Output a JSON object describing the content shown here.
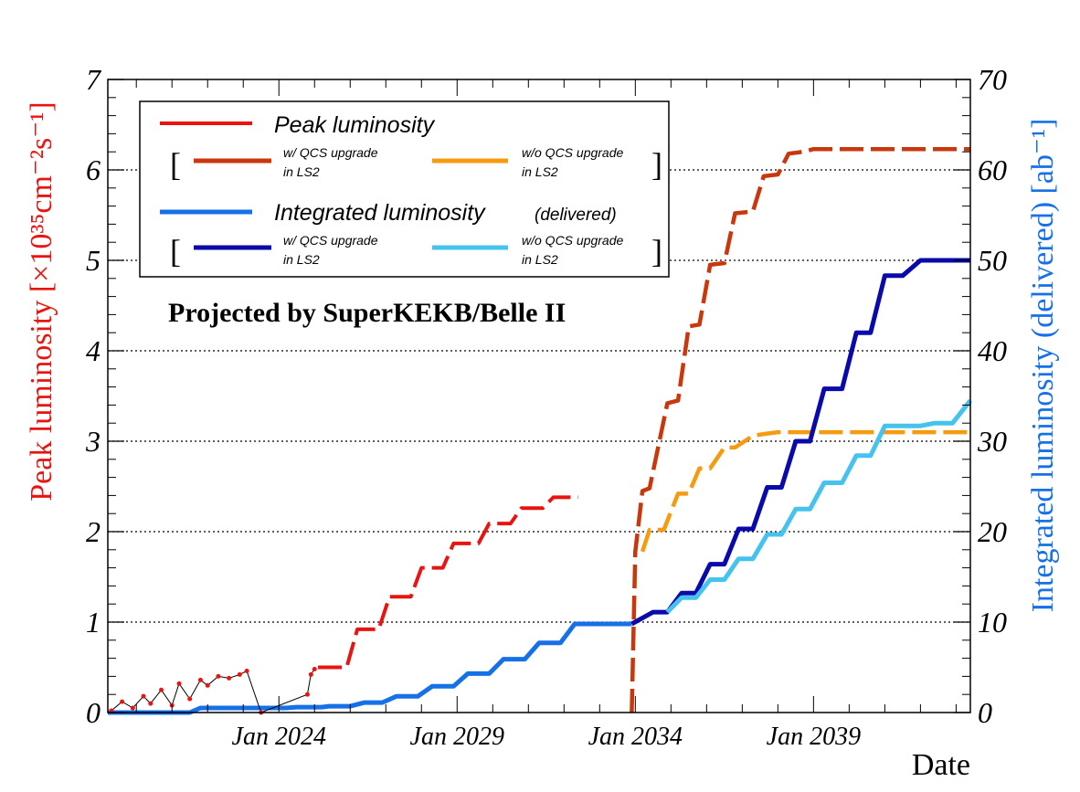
{
  "chart_data": {
    "type": "line",
    "title": "",
    "annotation": "Projected by SuperKEKB/Belle II",
    "xlabel": "Date",
    "ylabel_left": "Peak luminosity [×10³⁵cm⁻²s⁻¹]",
    "ylabel_right": "Integrated luminosity (delivered) [ab⁻¹]",
    "x_range": [
      2019.2,
      2043.4
    ],
    "ylim_left": [
      0,
      7
    ],
    "ylim_right": [
      0,
      70
    ],
    "x_ticks": [
      {
        "x": 2024.0,
        "label": "Jan 2024"
      },
      {
        "x": 2029.0,
        "label": "Jan 2029"
      },
      {
        "x": 2034.0,
        "label": "Jan 2034"
      },
      {
        "x": 2039.0,
        "label": "Jan 2039"
      }
    ],
    "y_ticks_left": [
      "0",
      "1",
      "2",
      "3",
      "4",
      "5",
      "6",
      "7"
    ],
    "y_ticks_right": [
      "0",
      "10",
      "20",
      "30",
      "40",
      "50",
      "60",
      "70"
    ],
    "gridlines_y": [
      1,
      2,
      3,
      4,
      5,
      6
    ],
    "grid": "horizontal dotted",
    "legend": {
      "placement": "top-left",
      "peak_label": "Peak luminosity",
      "integ_label": "Integrated luminosity",
      "integ_sub": "(delivered)",
      "with_upgrade": "w/ QCS upgrade",
      "without_upgrade": "w/o QCS upgrade",
      "in_ls2": "in LS2",
      "bracket_open": "[",
      "bracket_close": "]"
    },
    "colors": {
      "peak": "#e8140f",
      "peak_with_qcs": "#c8380c",
      "peak_without_qcs": "#f59b10",
      "integ": "#1670e8",
      "integ_with_qcs": "#0a0aaa",
      "integ_without_qcs": "#45c3ee",
      "axis_left_label": "#e8140f",
      "axis_right_label": "#1670e8"
    },
    "series": [
      {
        "name": "Peak luminosity",
        "axis": "left",
        "color": "#e8140f",
        "x": [
          2025.1,
          2025.9,
          2026.2,
          2026.8,
          2027.1,
          2027.7,
          2028.0,
          2028.6,
          2028.9,
          2029.6,
          2029.9,
          2030.5,
          2030.8,
          2031.4,
          2031.7,
          2032.4
        ],
        "y": [
          0.5,
          0.5,
          0.92,
          0.92,
          1.28,
          1.28,
          1.6,
          1.6,
          1.87,
          1.87,
          2.09,
          2.09,
          2.26,
          2.26,
          2.38,
          2.38
        ]
      },
      {
        "name": "Peak luminosity w/ QCS upgrade in LS2",
        "axis": "left",
        "color": "#c8380c",
        "x": [
          2033.9,
          2034.0,
          2034.2,
          2034.4,
          2034.9,
          2035.2,
          2035.5,
          2035.8,
          2036.1,
          2036.5,
          2036.8,
          2037.3,
          2037.6,
          2038.0,
          2038.3,
          2038.7,
          2039.0,
          2039.4,
          2040.0,
          2040.5,
          2041.0,
          2043.4
        ],
        "y": [
          0,
          1.78,
          2.45,
          2.48,
          3.42,
          3.45,
          4.27,
          4.29,
          4.95,
          4.97,
          5.52,
          5.54,
          5.93,
          5.95,
          6.18,
          6.2,
          6.23,
          6.23,
          6.23,
          6.23,
          6.23,
          6.23
        ]
      },
      {
        "name": "Peak luminosity w/o QCS upgrade in LS2",
        "axis": "left",
        "color": "#f59b10",
        "x": [
          2034.2,
          2034.4,
          2034.8,
          2035.2,
          2035.5,
          2035.8,
          2036.1,
          2036.5,
          2036.8,
          2037.3,
          2037.6,
          2038.0,
          2038.4,
          2039.0,
          2040.0,
          2043.4
        ],
        "y": [
          1.78,
          2.02,
          2.02,
          2.42,
          2.42,
          2.7,
          2.7,
          2.93,
          2.93,
          3.06,
          3.08,
          3.1,
          3.1,
          3.1,
          3.1,
          3.1
        ]
      },
      {
        "name": "Integrated luminosity (delivered)",
        "axis": "right",
        "color": "#1670e8",
        "x": [
          2019.2,
          2021.5,
          2021.8,
          2024.2,
          2024.5,
          2025.2,
          2025.4,
          2026.0,
          2026.4,
          2026.9,
          2027.3,
          2027.9,
          2028.3,
          2028.9,
          2029.3,
          2029.9,
          2030.3,
          2030.9,
          2031.3,
          2031.9,
          2032.3,
          2033.9
        ],
        "y": [
          0,
          0,
          0.5,
          0.5,
          0.6,
          0.6,
          0.7,
          0.7,
          1.1,
          1.1,
          1.8,
          1.8,
          2.9,
          2.9,
          4.3,
          4.3,
          5.9,
          5.9,
          7.7,
          7.7,
          9.8,
          9.8
        ]
      },
      {
        "name": "Integrated luminosity w/ QCS upgrade in LS2",
        "axis": "right",
        "color": "#0a0aaa",
        "x": [
          2033.9,
          2034.5,
          2034.9,
          2035.3,
          2035.7,
          2036.1,
          2036.5,
          2036.9,
          2037.3,
          2037.7,
          2038.1,
          2038.5,
          2038.9,
          2039.3,
          2039.8,
          2040.2,
          2040.6,
          2041.0,
          2041.5,
          2042.0,
          2042.4,
          2042.9,
          2043.4
        ],
        "y": [
          9.8,
          11.1,
          11.1,
          13.2,
          13.2,
          16.4,
          16.4,
          20.3,
          20.3,
          24.9,
          24.9,
          30.0,
          30.0,
          35.8,
          35.8,
          42.0,
          42.0,
          48.3,
          48.3,
          50.0,
          50.0,
          50.0,
          50.0
        ]
      },
      {
        "name": "Integrated luminosity w/o QCS upgrade in LS2",
        "axis": "right",
        "color": "#45c3ee",
        "x": [
          2034.9,
          2035.3,
          2035.7,
          2036.1,
          2036.5,
          2036.9,
          2037.3,
          2037.7,
          2038.1,
          2038.5,
          2038.9,
          2039.3,
          2039.8,
          2040.2,
          2040.6,
          2041.0,
          2041.5,
          2042.0,
          2042.4,
          2042.9,
          2043.4
        ],
        "y": [
          11.1,
          12.7,
          12.7,
          14.7,
          14.7,
          17.0,
          17.0,
          19.7,
          19.7,
          22.5,
          22.5,
          25.4,
          25.4,
          28.4,
          28.4,
          31.7,
          31.7,
          31.7,
          32.0,
          32.0,
          34.5
        ]
      },
      {
        "name": "Peak luminosity (measured)",
        "axis": "left",
        "color": "#e8140f",
        "x": [
          2019.3,
          2019.6,
          2019.9,
          2020.2,
          2020.4,
          2020.7,
          2021.0,
          2021.2,
          2021.5,
          2021.8,
          2022.0,
          2022.3,
          2022.6,
          2022.9,
          2023.1,
          2023.5,
          2024.8,
          2024.9,
          2025.0
        ],
        "y": [
          0.02,
          0.12,
          0.05,
          0.18,
          0.1,
          0.25,
          0.08,
          0.32,
          0.15,
          0.36,
          0.3,
          0.4,
          0.38,
          0.42,
          0.46,
          0.0,
          0.2,
          0.42,
          0.48
        ]
      }
    ]
  }
}
